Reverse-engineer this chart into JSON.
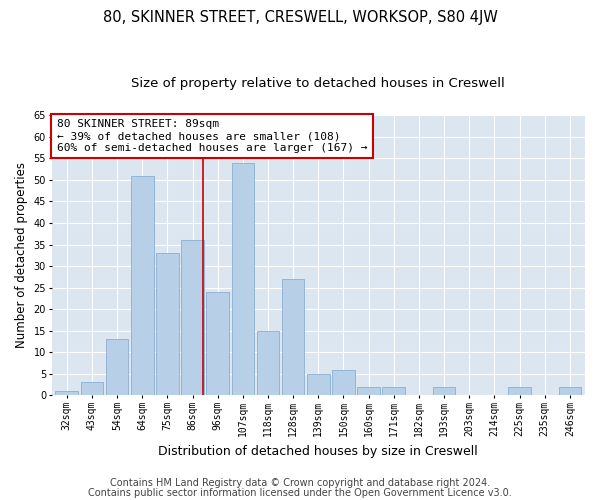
{
  "title": "80, SKINNER STREET, CRESWELL, WORKSOP, S80 4JW",
  "subtitle": "Size of property relative to detached houses in Creswell",
  "xlabel": "Distribution of detached houses by size in Creswell",
  "ylabel": "Number of detached properties",
  "categories": [
    "32sqm",
    "43sqm",
    "54sqm",
    "64sqm",
    "75sqm",
    "86sqm",
    "96sqm",
    "107sqm",
    "118sqm",
    "128sqm",
    "139sqm",
    "150sqm",
    "160sqm",
    "171sqm",
    "182sqm",
    "193sqm",
    "203sqm",
    "214sqm",
    "225sqm",
    "235sqm",
    "246sqm"
  ],
  "values": [
    1,
    3,
    13,
    51,
    33,
    36,
    24,
    54,
    15,
    27,
    5,
    6,
    2,
    2,
    0,
    2,
    0,
    0,
    2,
    0,
    2
  ],
  "bar_color": "#b8cfe8",
  "bar_edge_color": "#8aafd0",
  "background_color": "#dce6f0",
  "annotation_text": "80 SKINNER STREET: 89sqm\n← 39% of detached houses are smaller (108)\n60% of semi-detached houses are larger (167) →",
  "annotation_box_color": "#ffffff",
  "annotation_box_edge": "#cc0000",
  "vline_color": "#cc0000",
  "vline_index": 5.43,
  "footer1": "Contains HM Land Registry data © Crown copyright and database right 2024.",
  "footer2": "Contains public sector information licensed under the Open Government Licence v3.0.",
  "ylim": [
    0,
    65
  ],
  "yticks": [
    0,
    5,
    10,
    15,
    20,
    25,
    30,
    35,
    40,
    45,
    50,
    55,
    60,
    65
  ],
  "title_fontsize": 10.5,
  "subtitle_fontsize": 9.5,
  "xlabel_fontsize": 9,
  "ylabel_fontsize": 8.5,
  "tick_fontsize": 7,
  "footer_fontsize": 7,
  "annot_fontsize": 8
}
